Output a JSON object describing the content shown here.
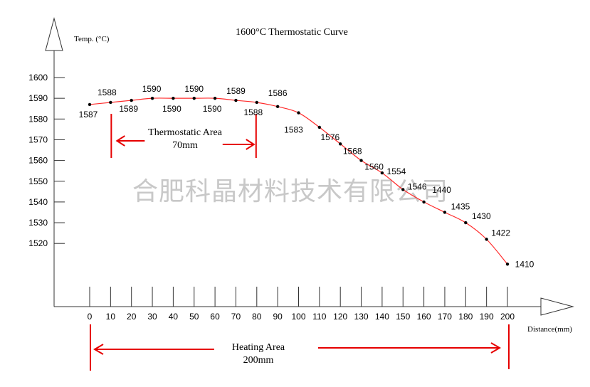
{
  "chart_data": {
    "type": "line",
    "title": "1600°C Thermostatic Curve",
    "ylabel": "Temp. (°C)",
    "xlabel": "Distance(mm)",
    "x_ticks": [
      0,
      10,
      20,
      30,
      40,
      50,
      60,
      70,
      80,
      90,
      100,
      110,
      120,
      130,
      140,
      150,
      160,
      170,
      180,
      190,
      200
    ],
    "y_ticks": [
      1520,
      1530,
      1540,
      1550,
      1560,
      1570,
      1580,
      1590,
      1600
    ],
    "x": [
      0,
      10,
      20,
      30,
      40,
      50,
      60,
      70,
      80,
      90,
      100,
      110,
      120,
      130,
      140,
      150,
      160,
      170,
      180,
      190,
      200
    ],
    "y": [
      1587,
      1588,
      1589,
      1590,
      1590,
      1590,
      1590,
      1589,
      1588,
      1586,
      1583,
      1576,
      1568,
      1560,
      1554,
      1546,
      1440,
      1435,
      1430,
      1422,
      1410
    ],
    "line_color": "#ff2a2a",
    "annotation_color": "#e60000",
    "annotations": {
      "thermostatic_area": {
        "line1": "Thermostatic Area",
        "line2": "70mm",
        "x_from": 10,
        "x_to": 80
      },
      "heating_area": {
        "line1": "Heating Area",
        "line2": "200mm",
        "x_from": 0,
        "x_to": 200
      }
    },
    "watermark": "合肥科晶材料技术有限公司",
    "grid": false
  }
}
